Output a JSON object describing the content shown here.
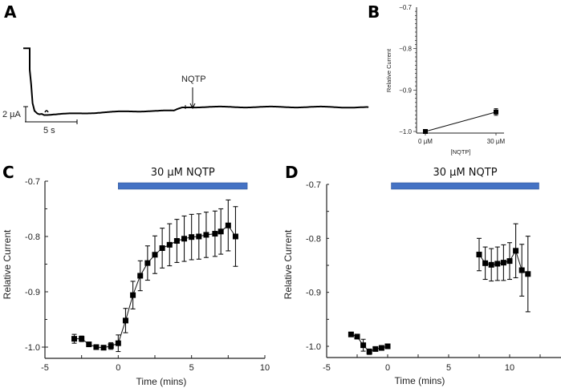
{
  "colors": {
    "bar": "#4472C4",
    "bar_edge": "#2f5597",
    "ink": "#000000"
  },
  "panels": {
    "A": {
      "label": "A"
    },
    "B": {
      "label": "B"
    },
    "C": {
      "label": "C"
    },
    "D": {
      "label": "D"
    }
  },
  "chart_data": [
    {
      "id": "A",
      "type": "line",
      "title": "",
      "description": "Current trace; NQTP application marked by arrow",
      "annotation": "NQTP",
      "scalebar_y": "2 µA",
      "scalebar_x": "5 s",
      "trace_relative": {
        "note": "normalized trace: t in seconds from start, i in µA relative to baseline (positive = upward deflection)",
        "t": [
          0,
          0.3,
          0.6,
          1.0,
          1.5,
          2.0,
          2.5,
          3.0,
          4.0,
          6.0,
          10.0,
          15.0,
          20.0,
          25.0,
          29.0,
          29.8,
          30.5,
          31.5,
          33.0,
          40.0,
          50.0,
          60.0,
          70.0
        ],
        "i": [
          5.9,
          4.0,
          1.5,
          0.5,
          0.2,
          0.1,
          0.15,
          0.0,
          0.0,
          0.05,
          0.15,
          0.3,
          0.4,
          0.5,
          0.5,
          0.55,
          0.7,
          0.95,
          1.0,
          1.0,
          1.0,
          1.0,
          0.95
        ]
      }
    },
    {
      "id": "B",
      "type": "line",
      "title": "",
      "xlabel": "[NQTP]",
      "ylabel": "Relative Current",
      "categories": [
        "0 µM",
        "30 µM"
      ],
      "values": [
        -1.0,
        -0.953
      ],
      "errors": [
        0.0,
        0.008
      ],
      "ylim": [
        -1.0,
        -0.7
      ],
      "yticks": [
        "-1.0",
        "-0.9",
        "-0.8",
        "-0.7"
      ]
    },
    {
      "id": "C",
      "type": "line",
      "title": "",
      "bar_label": "30 µM NQTP",
      "bar_range": [
        0,
        8.8
      ],
      "xlabel": "Time (mins)",
      "ylabel": "Relative Current",
      "xlim": [
        -5,
        10
      ],
      "ylim": [
        -1.02,
        -0.7
      ],
      "xticks": [
        "-5",
        "0",
        "5",
        "10"
      ],
      "yticks": [
        "-1.0",
        "-0.9",
        "-0.8",
        "-0.7"
      ],
      "x": [
        -3,
        -2.5,
        -2,
        -1.5,
        -1,
        -0.5,
        0,
        0.5,
        1,
        1.5,
        2,
        2.5,
        3,
        3.5,
        4,
        4.5,
        5,
        5.5,
        6,
        6.6,
        7,
        7.5,
        8
      ],
      "values": [
        -0.985,
        -0.985,
        -0.995,
        -1.0,
        -1.001,
        -0.998,
        -0.993,
        -0.952,
        -0.906,
        -0.871,
        -0.848,
        -0.833,
        -0.821,
        -0.815,
        -0.808,
        -0.804,
        -0.801,
        -0.8,
        -0.797,
        -0.795,
        -0.791,
        -0.78,
        -0.8
      ],
      "errors": [
        0.008,
        0.005,
        0.003,
        0.003,
        0.003,
        0.006,
        0.015,
        0.022,
        0.025,
        0.027,
        0.031,
        0.034,
        0.036,
        0.038,
        0.039,
        0.041,
        0.041,
        0.041,
        0.041,
        0.041,
        0.041,
        0.046,
        0.054
      ]
    },
    {
      "id": "D",
      "type": "line",
      "title": "",
      "bar_label": "30 µM NQTP",
      "bar_range": [
        0.3,
        12.4
      ],
      "xlabel": "Time (mins)",
      "ylabel": "Relative Current",
      "xlim": [
        -5,
        14
      ],
      "ylim": [
        -1.02,
        -0.7
      ],
      "xticks": [
        "-5",
        "0",
        "5",
        "10"
      ],
      "yticks": [
        "-1.0",
        "-0.9",
        "-0.8",
        "-0.7"
      ],
      "segments": [
        {
          "x": [
            -3,
            -2.5,
            -2,
            -1.5,
            -1,
            -0.5,
            0
          ],
          "values": [
            -0.978,
            -0.982,
            -0.998,
            -1.01,
            -1.005,
            -1.003,
            -1.0
          ],
          "errors": [
            0.004,
            0.004,
            0.011,
            0.005,
            0.003,
            0.002,
            0.002
          ]
        },
        {
          "x": [
            7.5,
            8,
            8.5,
            9,
            9.5,
            10,
            10.5,
            11,
            11.5
          ],
          "values": [
            -0.83,
            -0.846,
            -0.849,
            -0.847,
            -0.845,
            -0.842,
            -0.823,
            -0.859,
            -0.866
          ],
          "errors": [
            0.03,
            0.03,
            0.03,
            0.031,
            0.033,
            0.034,
            0.05,
            0.048,
            0.07
          ]
        }
      ]
    }
  ]
}
